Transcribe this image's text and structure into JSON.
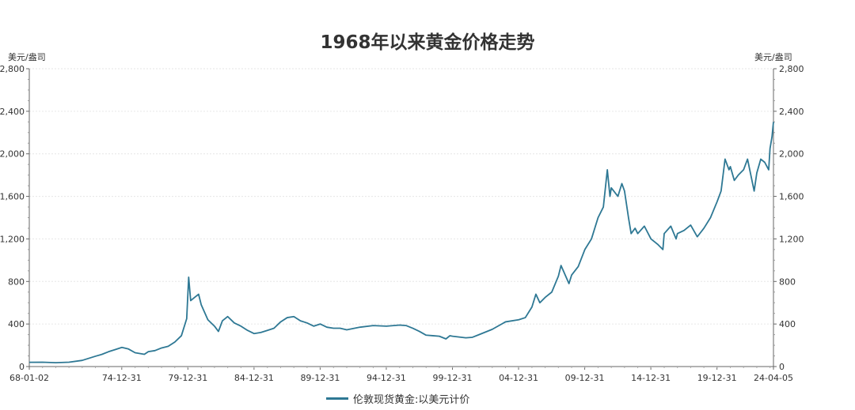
{
  "chart_data": {
    "type": "line",
    "title": "1968年以来黄金价格走势",
    "ylabel_left": "美元/盎司",
    "ylabel_right": "美元/盎司",
    "ylim": [
      0,
      2800
    ],
    "yticks_left": [
      "0",
      "400",
      "800",
      "1,200",
      "1,600",
      "2,000",
      "2,400",
      "2,800"
    ],
    "yticks_right": [
      "0",
      "400",
      "800",
      "1,200",
      "1,600",
      "2,000",
      "2,400",
      "2,800"
    ],
    "xlim": [
      1968.0,
      2024.26
    ],
    "xticks": [
      {
        "label": "68-01-02",
        "x": 1968.0
      },
      {
        "label": "74-12-31",
        "x": 1974.99
      },
      {
        "label": "79-12-31",
        "x": 1979.99
      },
      {
        "label": "84-12-31",
        "x": 1984.99
      },
      {
        "label": "89-12-31",
        "x": 1989.99
      },
      {
        "label": "94-12-31",
        "x": 1994.99
      },
      {
        "label": "99-12-31",
        "x": 1999.99
      },
      {
        "label": "04-12-31",
        "x": 2004.99
      },
      {
        "label": "09-12-31",
        "x": 2009.99
      },
      {
        "label": "14-12-31",
        "x": 2014.99
      },
      {
        "label": "19-12-31",
        "x": 2019.99
      },
      {
        "label": "24-04-05",
        "x": 2024.26
      }
    ],
    "grid": true,
    "legend_position": "bottom",
    "series": [
      {
        "name": "伦敦现货黄金:以美元计价",
        "color": "#2e7894",
        "x": [
          1968.0,
          1969.0,
          1970.0,
          1971.0,
          1972.0,
          1973.0,
          1973.5,
          1974.0,
          1974.5,
          1975.0,
          1975.5,
          1976.0,
          1976.7,
          1977.0,
          1977.5,
          1978.0,
          1978.5,
          1979.0,
          1979.5,
          1979.9,
          1980.05,
          1980.2,
          1980.5,
          1980.8,
          1981.0,
          1981.5,
          1982.0,
          1982.3,
          1982.6,
          1983.0,
          1983.5,
          1984.0,
          1984.5,
          1985.0,
          1985.5,
          1986.0,
          1986.5,
          1987.0,
          1987.5,
          1988.0,
          1988.5,
          1989.0,
          1989.5,
          1990.0,
          1990.5,
          1991.0,
          1991.5,
          1992.0,
          1993.0,
          1994.0,
          1995.0,
          1996.0,
          1996.5,
          1997.0,
          1997.5,
          1998.0,
          1998.5,
          1999.0,
          1999.5,
          1999.8,
          2000.0,
          2001.0,
          2001.5,
          2002.0,
          2003.0,
          2004.0,
          2005.0,
          2005.5,
          2006.0,
          2006.3,
          2006.6,
          2007.0,
          2007.5,
          2008.0,
          2008.2,
          2008.8,
          2009.0,
          2009.5,
          2010.0,
          2010.5,
          2011.0,
          2011.4,
          2011.7,
          2011.9,
          2012.0,
          2012.5,
          2012.8,
          2013.0,
          2013.3,
          2013.5,
          2013.8,
          2014.0,
          2014.5,
          2015.0,
          2015.5,
          2015.9,
          2016.0,
          2016.5,
          2016.9,
          2017.0,
          2017.5,
          2018.0,
          2018.5,
          2019.0,
          2019.5,
          2019.9,
          2020.0,
          2020.3,
          2020.6,
          2020.9,
          2021.0,
          2021.3,
          2021.6,
          2022.0,
          2022.3,
          2022.8,
          2023.0,
          2023.3,
          2023.6,
          2023.9,
          2024.0,
          2024.15,
          2024.26
        ],
        "values": [
          40,
          41,
          36,
          41,
          58,
          97,
          115,
          140,
          160,
          180,
          165,
          130,
          115,
          140,
          150,
          175,
          190,
          230,
          290,
          450,
          840,
          620,
          650,
          680,
          580,
          440,
          380,
          330,
          430,
          470,
          410,
          380,
          340,
          310,
          320,
          340,
          360,
          420,
          460,
          470,
          430,
          410,
          380,
          400,
          370,
          360,
          360,
          345,
          370,
          385,
          380,
          390,
          385,
          360,
          330,
          295,
          290,
          285,
          260,
          290,
          285,
          270,
          275,
          300,
          350,
          420,
          440,
          460,
          560,
          680,
          600,
          650,
          700,
          850,
          950,
          780,
          860,
          940,
          1100,
          1200,
          1400,
          1500,
          1850,
          1600,
          1680,
          1600,
          1720,
          1650,
          1400,
          1250,
          1300,
          1250,
          1320,
          1200,
          1150,
          1100,
          1250,
          1320,
          1200,
          1250,
          1280,
          1330,
          1220,
          1300,
          1400,
          1520,
          1550,
          1650,
          1950,
          1850,
          1880,
          1750,
          1800,
          1850,
          1950,
          1650,
          1820,
          1950,
          1920,
          1850,
          2050,
          2160,
          2300
        ]
      }
    ]
  }
}
